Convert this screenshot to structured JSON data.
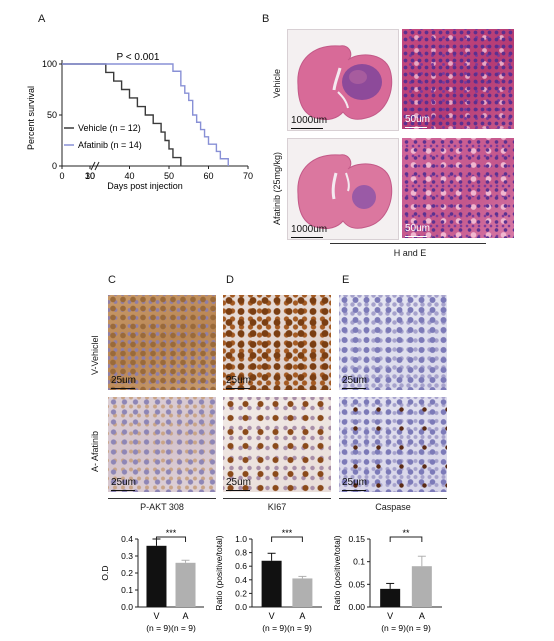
{
  "panels": {
    "A": "A",
    "B": "B",
    "C": "C",
    "D": "D",
    "E": "E"
  },
  "survival": {
    "pvalue": "P < 0.001",
    "ylabel": "Percent survival",
    "xlabel": "Days post injection",
    "legend_vehicle": "Vehicle (n = 12)",
    "legend_afatinib": "Afatinib (n = 14)",
    "vehicle_color": "#3a3a3a",
    "afatinib_color": "#8890d6"
  },
  "he": {
    "row_vehicle": "Vehicle",
    "row_afatinib": "Afatinib (25mg/kg)",
    "scale_whole": "1000um",
    "scale_zoom": "50um",
    "footer": "H and E"
  },
  "ihc": {
    "row_vehicle": "V-Vehiclel",
    "row_afatinib": "A- Afatinib",
    "scale": "25um",
    "col_akt": "P-AKT 308",
    "col_ki67": "KI67",
    "col_caspase": "Caspase"
  },
  "bars": {
    "xlabel_v": "V",
    "xlabel_a": "A",
    "n_label": "(n = 9)(n = 9)"
  },
  "chart_data": [
    {
      "type": "line",
      "chart": "kaplan-meier",
      "ylabel": "Percent survival",
      "xlabel": "Days post injection",
      "annotation": "P < 0.001",
      "yticks": [
        0,
        50,
        100
      ],
      "xticks": [
        0,
        10,
        30,
        40,
        50,
        60,
        70
      ],
      "axis_break": true,
      "series": [
        {
          "name": "Vehicle (n = 12)",
          "color": "#3a3a3a",
          "x": [
            0,
            34,
            36,
            38,
            40,
            42,
            44,
            46,
            48,
            49,
            50,
            51,
            52,
            53
          ],
          "y": [
            100,
            91.7,
            83.3,
            75,
            66.7,
            58.3,
            50,
            41.7,
            33.3,
            25,
            16.7,
            8.3,
            8.3,
            0
          ]
        },
        {
          "name": "Afatinib (n = 14)",
          "color": "#8890d6",
          "x": [
            0,
            49,
            51,
            53,
            54,
            55,
            56,
            57,
            58,
            59,
            60,
            62,
            63,
            64,
            65
          ],
          "y": [
            100,
            100,
            92.9,
            78.6,
            71.4,
            64.3,
            50,
            42.9,
            35.7,
            28.6,
            21.4,
            14.3,
            7.1,
            7.1,
            0
          ]
        }
      ]
    },
    {
      "type": "bar",
      "ylabel": "O.D",
      "categories": [
        "V",
        "A"
      ],
      "values": [
        0.36,
        0.26
      ],
      "errors": [
        0.04,
        0.015
      ],
      "ylim": [
        0,
        0.4
      ],
      "yticks": [
        0.0,
        0.1,
        0.2,
        0.3,
        0.4
      ],
      "significance": "***",
      "colors": [
        "#111111",
        "#b0b0b0"
      ]
    },
    {
      "type": "bar",
      "ylabel": "Ratio (positive/total)",
      "categories": [
        "V",
        "A"
      ],
      "values": [
        0.68,
        0.42
      ],
      "errors": [
        0.11,
        0.03
      ],
      "ylim": [
        0,
        1.0
      ],
      "yticks": [
        0.0,
        0.2,
        0.4,
        0.6,
        0.8,
        1.0
      ],
      "significance": "***",
      "colors": [
        "#111111",
        "#b0b0b0"
      ]
    },
    {
      "type": "bar",
      "ylabel": "Ratio (positive/total)",
      "categories": [
        "V",
        "A"
      ],
      "values": [
        0.04,
        0.09
      ],
      "errors": [
        0.012,
        0.022
      ],
      "ylim": [
        0,
        0.15
      ],
      "yticks": [
        0.0,
        0.05,
        0.1,
        0.15
      ],
      "significance": "**",
      "colors": [
        "#111111",
        "#b0b0b0"
      ]
    }
  ]
}
